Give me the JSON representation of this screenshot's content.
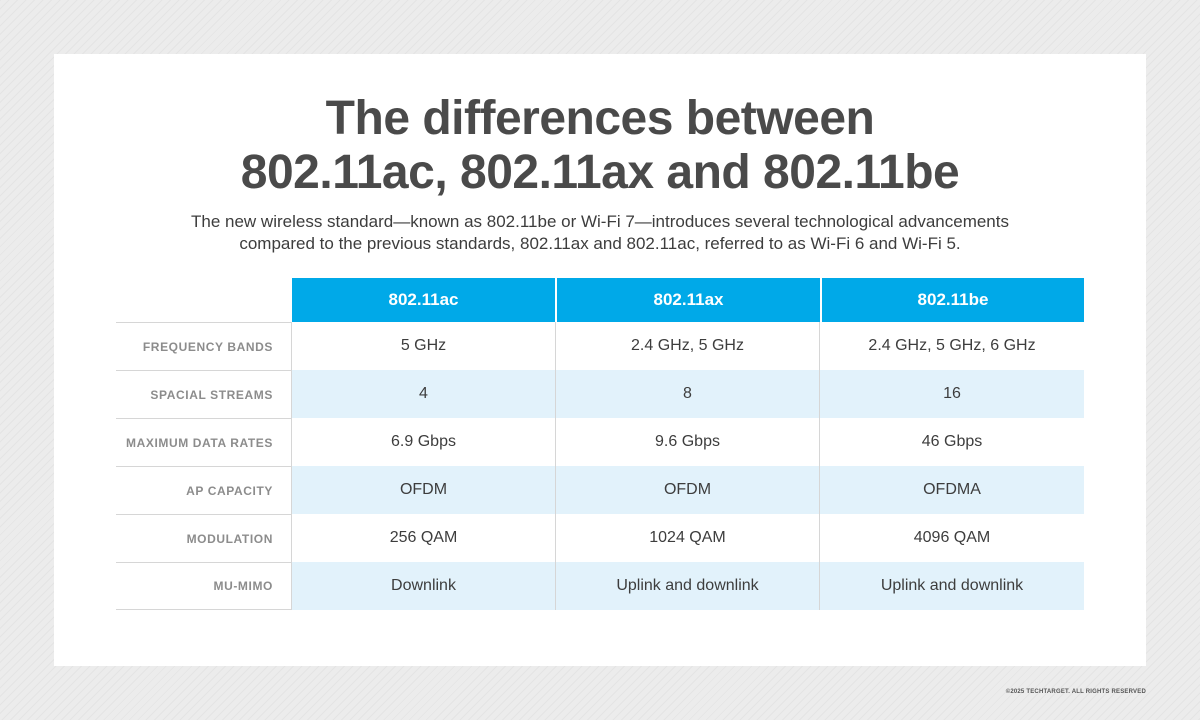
{
  "title": {
    "line1": "The differences between",
    "line2": "802.11ac, 802.11ax and 802.11be"
  },
  "subtitle": {
    "line1": "The new wireless standard—known as 802.11be or Wi-Fi 7—introduces several technological advancements",
    "line2": "compared to the previous standards, 802.11ax and 802.11ac, referred to as Wi-Fi 6 and Wi-Fi 5."
  },
  "table": {
    "headers": [
      "802.11ac",
      "802.11ax",
      "802.11be"
    ],
    "rows": [
      {
        "label": "FREQUENCY BANDS",
        "values": [
          "5 GHz",
          "2.4 GHz, 5 GHz",
          "2.4 GHz, 5 GHz, 6 GHz"
        ]
      },
      {
        "label": "SPACIAL STREAMS",
        "values": [
          "4",
          "8",
          "16"
        ]
      },
      {
        "label": "MAXIMUM DATA RATES",
        "values": [
          "6.9 Gbps",
          "9.6 Gbps",
          "46 Gbps"
        ]
      },
      {
        "label": "AP CAPACITY",
        "values": [
          "OFDM",
          "OFDM",
          "OFDMA"
        ]
      },
      {
        "label": "MODULATION",
        "values": [
          "256 QAM",
          "1024 QAM",
          "4096 QAM"
        ]
      },
      {
        "label": "MU-MIMO",
        "values": [
          "Downlink",
          "Uplink and downlink",
          "Uplink and downlink"
        ]
      }
    ]
  },
  "colors": {
    "header_bg": "#00a9e8",
    "row_shade": "#e2f2fb",
    "title_text": "#4a4a4a",
    "label_text": "#8c8c8c"
  },
  "copyright": "©2025 TECHTARGET. ALL RIGHTS RESERVED"
}
